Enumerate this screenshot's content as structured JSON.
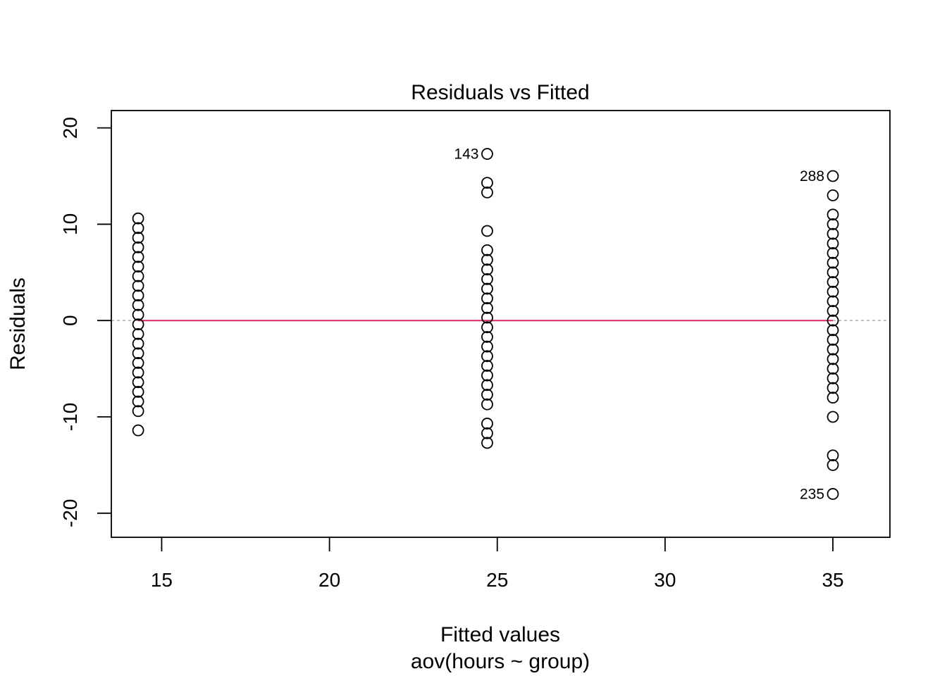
{
  "chart_data": {
    "type": "scatter",
    "title": "Residuals vs Fitted",
    "xlabel": "Fitted values",
    "xsublabel": "aov(hours ~ group)",
    "ylabel": "Residuals",
    "xlim": [
      13.5,
      36.7
    ],
    "ylim": [
      -22.5,
      21.8
    ],
    "xticks": [
      15,
      20,
      25,
      30,
      35
    ],
    "yticks": [
      -20,
      -10,
      0,
      10,
      20
    ],
    "xtick_labels": [
      "15",
      "20",
      "25",
      "30",
      "35"
    ],
    "ytick_labels": [
      "-20",
      "-10",
      "0",
      "10",
      "20"
    ],
    "grid": false,
    "reference_line": {
      "y": 0,
      "color": "#aaaaaa",
      "style": "dashed"
    },
    "smooth_line": {
      "color": "#e0245e",
      "points": [
        [
          14.3,
          0
        ],
        [
          35.0,
          0
        ]
      ]
    },
    "groups": [
      {
        "fitted": 14.3,
        "residuals": [
          10.6,
          9.6,
          8.6,
          7.6,
          6.6,
          5.6,
          4.6,
          3.6,
          2.6,
          1.6,
          0.6,
          -0.4,
          -1.4,
          -2.4,
          -3.4,
          -4.4,
          -5.4,
          -6.4,
          -7.4,
          -8.4,
          -9.4,
          -11.4
        ]
      },
      {
        "fitted": 24.7,
        "residuals": [
          17.3,
          14.3,
          13.3,
          9.3,
          7.3,
          6.3,
          5.3,
          4.3,
          3.3,
          2.3,
          1.3,
          0.3,
          -0.7,
          -1.7,
          -2.7,
          -3.7,
          -4.7,
          -5.7,
          -6.7,
          -7.7,
          -8.7,
          -10.7,
          -11.7,
          -12.7
        ]
      },
      {
        "fitted": 35.0,
        "residuals": [
          15,
          13,
          11,
          10,
          9,
          8,
          7,
          6,
          5,
          4,
          3,
          2,
          1,
          0,
          -1,
          -2,
          -3,
          -4,
          -5,
          -6,
          -7,
          -8,
          -10,
          -14,
          -15,
          -18
        ]
      }
    ],
    "point_labels": [
      {
        "text": "143",
        "x": 24.7,
        "y": 17.3
      },
      {
        "text": "288",
        "x": 35.0,
        "y": 15
      },
      {
        "text": "235",
        "x": 35.0,
        "y": -18
      }
    ]
  }
}
